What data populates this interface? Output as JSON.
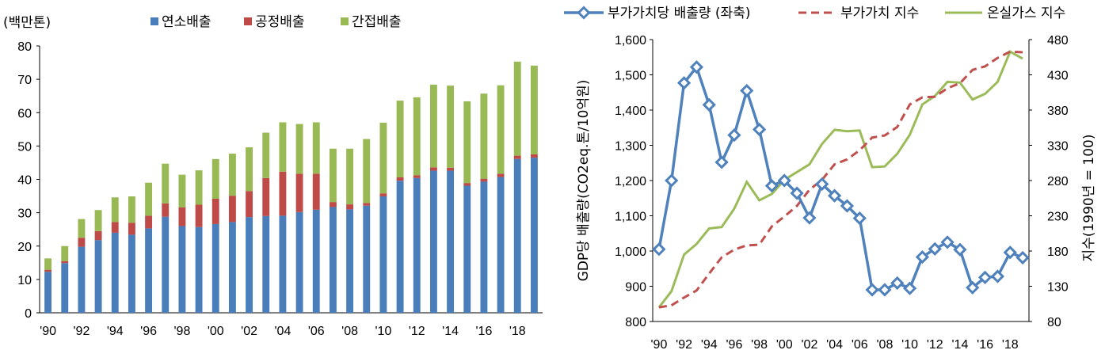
{
  "colors": {
    "combustion": "#4a7ebb",
    "process": "#be4b48",
    "indirect": "#98b954",
    "intensity": "#4f81bd",
    "gdp_index": "#c0504d",
    "ghg_index": "#9bbb59"
  },
  "chart_data": [
    {
      "type": "bar",
      "stacked": true,
      "unit_label": "(백만톤)",
      "ylim": [
        0,
        80
      ],
      "yticks": [
        "0",
        "10",
        "20",
        "30",
        "40",
        "50",
        "60",
        "70",
        "80"
      ],
      "ytick_values": [
        0,
        10,
        20,
        30,
        40,
        50,
        60,
        70,
        80
      ],
      "categories": [
        "1990",
        "1991",
        "1992",
        "1993",
        "1994",
        "1995",
        "1996",
        "1997",
        "1998",
        "1999",
        "2000",
        "2001",
        "2002",
        "2003",
        "2004",
        "2005",
        "2006",
        "2007",
        "2008",
        "2009",
        "2010",
        "2011",
        "2012",
        "2013",
        "2014",
        "2015",
        "2016",
        "2017",
        "2018",
        "2019"
      ],
      "xtick_labels": [
        "'90",
        "'92",
        "'94",
        "'96",
        "'98",
        "'00",
        "'02",
        "'04",
        "'06",
        "'08",
        "'10",
        "'12",
        "'14",
        "'16",
        "'18"
      ],
      "legend_position": "top",
      "series": [
        {
          "name": "연소배출",
          "values": [
            12.3,
            14.9,
            19.8,
            21.8,
            24.0,
            23.4,
            25.3,
            28.8,
            26.0,
            25.7,
            26.6,
            27.2,
            28.7,
            29.0,
            29.1,
            30.2,
            30.9,
            31.7,
            31.0,
            32.1,
            34.9,
            39.6,
            40.4,
            42.6,
            42.6,
            38.1,
            39.3,
            40.7,
            46.1,
            46.5
          ]
        },
        {
          "name": "공정배출",
          "values": [
            0.6,
            0.6,
            2.7,
            2.7,
            3.2,
            3.6,
            3.8,
            4.0,
            5.6,
            6.7,
            7.6,
            7.9,
            7.8,
            11.4,
            13.2,
            11.5,
            10.8,
            1.5,
            1.5,
            0.8,
            0.9,
            1.0,
            0.8,
            1.0,
            0.9,
            0.8,
            0.9,
            1.0,
            1.0,
            1.0
          ]
        },
        {
          "name": "간접배출",
          "values": [
            3.4,
            4.5,
            5.6,
            6.3,
            7.4,
            7.9,
            9.9,
            11.9,
            9.8,
            10.3,
            11.9,
            12.6,
            13.1,
            13.6,
            14.8,
            14.9,
            15.4,
            16.0,
            16.7,
            19.2,
            21.2,
            23.0,
            23.4,
            24.8,
            24.6,
            24.5,
            25.5,
            26.5,
            28.2,
            26.6
          ]
        }
      ]
    },
    {
      "type": "line",
      "xtick_labels": [
        "'90",
        "'92",
        "'94",
        "'96",
        "'98",
        "'00",
        "'02",
        "'04",
        "'06",
        "'08",
        "'10",
        "'12",
        "'14",
        "'16",
        "'18"
      ],
      "years": [
        1990,
        1991,
        1992,
        1993,
        1994,
        1995,
        1996,
        1997,
        1998,
        1999,
        2000,
        2001,
        2002,
        2003,
        2004,
        2005,
        2006,
        2007,
        2008,
        2009,
        2010,
        2011,
        2012,
        2013,
        2014,
        2015,
        2016,
        2017,
        2018,
        2019
      ],
      "ylabel_left": "GDP당 배출량(CO2eq.톤/10억원)",
      "ylabel_right": "지수(1990년 = 100)",
      "ylim_left": [
        800,
        1600
      ],
      "ylim_right": [
        80,
        480
      ],
      "yticks_left": [
        "800",
        "900",
        "1,000",
        "1,100",
        "1,200",
        "1,300",
        "1,400",
        "1,500",
        "1,600"
      ],
      "ytick_values_left": [
        800,
        900,
        1000,
        1100,
        1200,
        1300,
        1400,
        1500,
        1600
      ],
      "yticks_right": [
        "80",
        "130",
        "180",
        "230",
        "280",
        "330",
        "380",
        "430",
        "480"
      ],
      "ytick_values_right": [
        80,
        130,
        180,
        230,
        280,
        330,
        380,
        430,
        480
      ],
      "legend_position": "top",
      "series": [
        {
          "name": "부가가치당 배출량 (좌축)",
          "axis": "left",
          "style": "line-diamond",
          "values": [
            1005,
            1200,
            1477,
            1522,
            1415,
            1252,
            1329,
            1455,
            1345,
            1185,
            1200,
            1164,
            1094,
            1190,
            1157,
            1128,
            1093,
            890,
            890,
            909,
            894,
            983,
            1006,
            1025,
            1004,
            896,
            925,
            928,
            996,
            981
          ]
        },
        {
          "name": "부가가치 지수",
          "axis": "right",
          "style": "dashed",
          "values": [
            100,
            103,
            114,
            124,
            148,
            171,
            182,
            188,
            189,
            215,
            229,
            244,
            267,
            281,
            303,
            310,
            323,
            341,
            344,
            356,
            388,
            398,
            399,
            411,
            418,
            437,
            442,
            454,
            463,
            462
          ]
        },
        {
          "name": "온실가스 지수",
          "axis": "right",
          "style": "solid",
          "values": [
            100,
            123,
            175,
            190,
            212,
            214,
            240,
            278,
            252,
            261,
            281,
            292,
            303,
            332,
            352,
            350,
            351,
            299,
            300,
            318,
            345,
            388,
            400,
            420,
            419,
            395,
            403,
            420,
            463,
            453
          ]
        }
      ]
    }
  ]
}
